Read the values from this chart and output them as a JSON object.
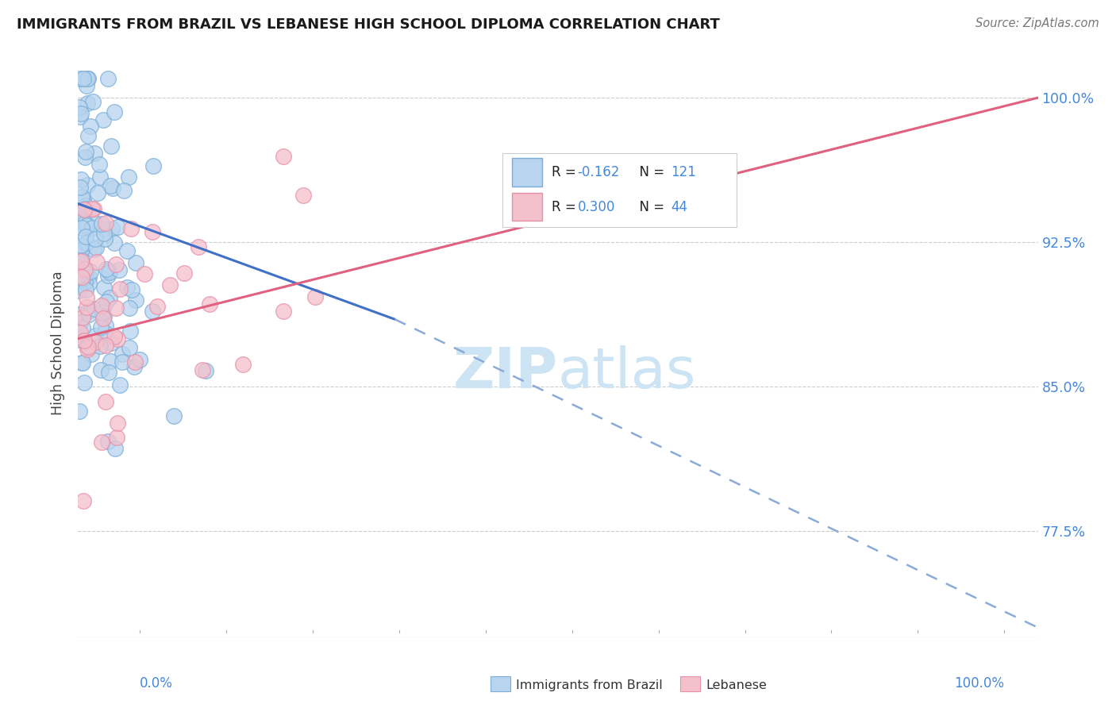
{
  "title": "IMMIGRANTS FROM BRAZIL VS LEBANESE HIGH SCHOOL DIPLOMA CORRELATION CHART",
  "source": "Source: ZipAtlas.com",
  "ylabel": "High School Diploma",
  "yticks": [
    77.5,
    85.0,
    92.5,
    100.0
  ],
  "ytick_labels": [
    "77.5%",
    "85.0%",
    "92.5%",
    "100.0%"
  ],
  "xmin": 0.0,
  "xmax": 100.0,
  "ymin": 72.0,
  "ymax": 102.5,
  "brazil_R": -0.162,
  "brazil_N": 121,
  "lebanese_R": 0.3,
  "lebanese_N": 44,
  "blue_face": "#b8d4ee",
  "blue_edge": "#7aaed8",
  "pink_face": "#f4c0cc",
  "pink_edge": "#e890a8",
  "trend_blue": "#4070c8",
  "trend_pink": "#e06080",
  "trend_blue_dash": "#8aaad8",
  "watermark_color": "#cce4f4",
  "brazil_trend_x0": 0.0,
  "brazil_trend_y0": 94.5,
  "brazil_solid_x1": 33.0,
  "brazil_solid_y1": 88.5,
  "brazil_dash_x1": 100.0,
  "brazil_dash_y1": 72.5,
  "lebanese_trend_x0": 0.0,
  "lebanese_trend_y0": 87.5,
  "lebanese_trend_x1": 100.0,
  "lebanese_trend_y1": 100.0
}
